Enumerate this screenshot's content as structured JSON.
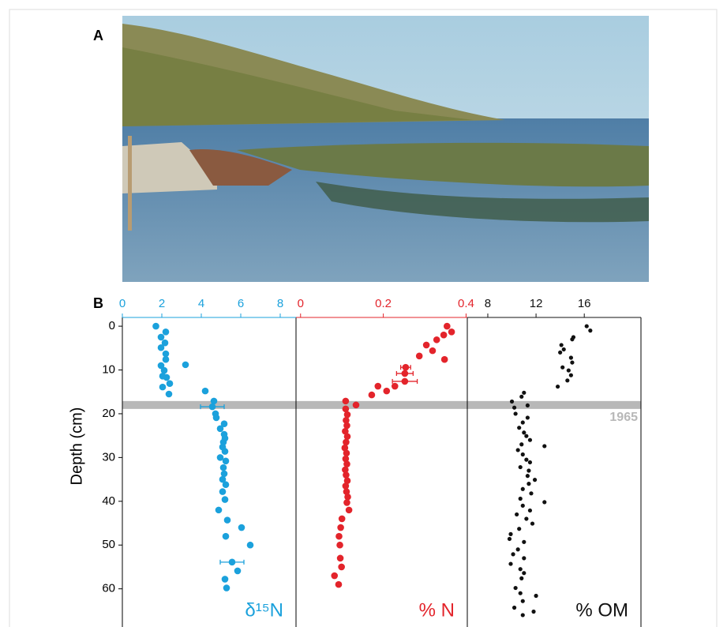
{
  "labels": [
    "A",
    "B"
  ],
  "chart_data": {
    "type": "scatter",
    "ylabel": "Depth (cm)",
    "ylim": [
      -2,
      68
    ],
    "invert_y": true,
    "yticks": [
      0,
      10,
      20,
      30,
      40,
      50,
      60
    ],
    "band_depth": 18,
    "band_label": "1965",
    "band_color": "#b8b8b8",
    "panels": [
      {
        "name": "δ¹⁵N",
        "color": "#1ba1dc",
        "xlim": [
          0,
          8.8
        ],
        "xticks": [
          0,
          2,
          4,
          6,
          8
        ],
        "x": [
          1.7,
          2.2,
          1.96,
          2.16,
          1.96,
          2.2,
          2.2,
          1.96,
          3.2,
          2.12,
          2.04,
          2.24,
          2.4,
          2.04,
          2.36,
          4.2,
          4.64,
          4.56,
          4.72,
          4.76,
          5.16,
          4.96,
          5.16,
          5.2,
          5.12,
          5.08,
          5.2,
          4.96,
          5.24,
          5.12,
          5.16,
          5.08,
          5.24,
          5.08,
          5.2,
          4.88,
          5.32,
          6.04,
          5.24,
          6.48,
          5.56,
          5.84,
          5.2,
          5.28
        ],
        "y": [
          0,
          1.3,
          2.5,
          3.8,
          4.9,
          6.3,
          7.6,
          9,
          8.8,
          10.1,
          11.4,
          11.7,
          13.1,
          13.9,
          15.5,
          14.8,
          17.1,
          18.4,
          20,
          20.9,
          22.3,
          23.4,
          24.7,
          25.6,
          26.5,
          27.6,
          28.6,
          30,
          30.8,
          32.3,
          33.7,
          35,
          36.2,
          37.8,
          39.6,
          42,
          44.3,
          46,
          48,
          50,
          53.9,
          55.9,
          57.8,
          59.8
        ],
        "xerr": [
          null,
          null,
          null,
          null,
          null,
          null,
          null,
          null,
          null,
          null,
          null,
          null,
          null,
          null,
          null,
          null,
          null,
          0.6,
          null,
          null,
          null,
          null,
          null,
          null,
          null,
          null,
          null,
          null,
          null,
          null,
          null,
          null,
          null,
          null,
          null,
          null,
          null,
          null,
          null,
          null,
          0.6,
          null,
          null,
          null
        ]
      },
      {
        "name": "% N",
        "color": "#e3242b",
        "xlim": [
          -0.011,
          0.403
        ],
        "xticks": [
          0,
          0.2,
          0.4
        ],
        "x": [
          0.354,
          0.365,
          0.346,
          0.329,
          0.304,
          0.319,
          0.348,
          0.287,
          0.254,
          0.252,
          0.252,
          0.228,
          0.187,
          0.208,
          0.172,
          0.134,
          0.109,
          0.109,
          0.113,
          0.11,
          0.112,
          0.108,
          0.113,
          0.11,
          0.107,
          0.111,
          0.109,
          0.112,
          0.108,
          0.11,
          0.113,
          0.109,
          0.111,
          0.114,
          0.112,
          0.117,
          0.1,
          0.097,
          0.093,
          0.095,
          0.096,
          0.099,
          0.082,
          0.092
        ],
        "y": [
          0,
          1.3,
          2,
          3.1,
          4.3,
          5.6,
          7.6,
          6.8,
          9.4,
          10.8,
          12.6,
          13.7,
          13.7,
          14.8,
          15.7,
          18,
          17.1,
          18.9,
          20.2,
          21.5,
          22.7,
          24,
          25.2,
          26.5,
          27.8,
          29,
          30.3,
          31.5,
          32.8,
          34,
          35.3,
          36.5,
          37.8,
          39,
          40.3,
          42,
          44,
          46,
          48,
          50,
          53,
          55,
          57,
          59
        ],
        "xerr": [
          null,
          null,
          null,
          null,
          null,
          null,
          null,
          null,
          0.012,
          0.02,
          0.03,
          null,
          null,
          null,
          null,
          null,
          null,
          null,
          null,
          null,
          null,
          null,
          null,
          null,
          null,
          null,
          null,
          null,
          null,
          null,
          null,
          null,
          null,
          null,
          null,
          null,
          null,
          null,
          null,
          null,
          null,
          null,
          null,
          null
        ]
      },
      {
        "name": "% OM",
        "color": "#111111",
        "xlim": [
          6.3,
          20.7
        ],
        "xticks": [
          8,
          12,
          16
        ],
        "x": [
          16.2,
          16.5,
          15.1,
          15.0,
          14.1,
          14.3,
          14.0,
          14.9,
          15.0,
          14.2,
          14.7,
          14.9,
          14.6,
          13.8,
          11.0,
          10.8,
          10.0,
          11.3,
          10.2,
          10.3,
          11.3,
          10.9,
          10.6,
          11.0,
          11.2,
          11.5,
          10.8,
          12.7,
          10.5,
          10.9,
          11.2,
          11.5,
          10.7,
          11.4,
          11.3,
          11.9,
          11.4,
          10.9,
          11.6,
          10.7,
          12.7,
          10.9,
          11.5,
          10.4,
          11.2,
          11.7,
          10.6,
          9.9,
          9.8,
          11.0,
          10.5,
          10.1,
          11.0,
          9.9,
          10.7,
          11.0,
          10.8,
          10.3,
          10.7,
          12.0,
          10.9,
          10.2,
          11.8,
          10.9
        ],
        "y": [
          0,
          1,
          2.5,
          3,
          4.3,
          5.3,
          6,
          7.2,
          8.3,
          9.4,
          10.1,
          11.2,
          12.4,
          13.8,
          15.2,
          16.1,
          17.2,
          18.1,
          18.6,
          20,
          20.9,
          22,
          23.2,
          24.3,
          25.1,
          26,
          27,
          27.4,
          28.3,
          29.3,
          30.5,
          31.1,
          32.2,
          33,
          34.2,
          35.1,
          36,
          37.2,
          38.2,
          39.4,
          40.2,
          41,
          42.1,
          43,
          44,
          45.1,
          46.3,
          47.5,
          48.6,
          49.3,
          51,
          52.1,
          53,
          54.3,
          55.5,
          56.4,
          57.6,
          59.8,
          61,
          61.6,
          62.8,
          64.3,
          65.2,
          66
        ]
      }
    ]
  }
}
